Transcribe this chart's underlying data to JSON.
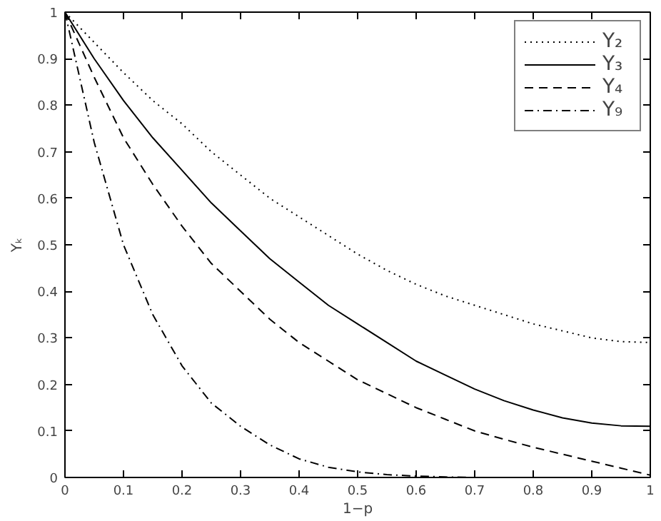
{
  "chart_data": {
    "type": "line",
    "xlabel": "1−p",
    "ylabel": "Υₖ",
    "xlim": [
      0,
      1
    ],
    "ylim": [
      0,
      1
    ],
    "xticks": [
      0,
      0.1,
      0.2,
      0.3,
      0.4,
      0.5,
      0.6,
      0.7,
      0.8,
      0.9,
      1
    ],
    "yticks": [
      0,
      0.1,
      0.2,
      0.3,
      0.4,
      0.5,
      0.6,
      0.7,
      0.8,
      0.9,
      1
    ],
    "grid": false,
    "legend": "top right",
    "marker": "none",
    "x": [
      0,
      0.05,
      0.1,
      0.15,
      0.2,
      0.25,
      0.3,
      0.35,
      0.4,
      0.45,
      0.5,
      0.55,
      0.6,
      0.65,
      0.7,
      0.75,
      0.8,
      0.85,
      0.9,
      0.95,
      1
    ],
    "series": [
      {
        "name": "Υ₂",
        "color": "#000000",
        "line_style": "dotted",
        "values": [
          1,
          0.935,
          0.87,
          0.81,
          0.76,
          0.7,
          0.65,
          0.6,
          0.56,
          0.52,
          0.48,
          0.445,
          0.415,
          0.39,
          0.37,
          0.35,
          0.33,
          0.315,
          0.3,
          0.292,
          0.29
        ]
      },
      {
        "name": "Υ₃",
        "color": "#000000",
        "line_style": "solid",
        "values": [
          1,
          0.9,
          0.81,
          0.73,
          0.66,
          0.59,
          0.53,
          0.47,
          0.42,
          0.37,
          0.33,
          0.29,
          0.25,
          0.22,
          0.19,
          0.165,
          0.145,
          0.128,
          0.117,
          0.111,
          0.11
        ]
      },
      {
        "name": "Υ₄",
        "color": "#000000",
        "line_style": "dashed",
        "values": [
          1,
          0.86,
          0.73,
          0.63,
          0.54,
          0.46,
          0.4,
          0.34,
          0.29,
          0.25,
          0.21,
          0.18,
          0.15,
          0.125,
          0.1,
          0.082,
          0.065,
          0.05,
          0.035,
          0.02,
          0.005
        ]
      },
      {
        "name": "Υ₉",
        "color": "#000000",
        "line_style": "dashdot",
        "values": [
          1,
          0.72,
          0.5,
          0.35,
          0.24,
          0.16,
          0.11,
          0.07,
          0.04,
          0.022,
          0.012,
          0.006,
          0.003,
          0.001,
          0,
          null,
          null,
          null,
          null,
          null,
          null
        ]
      }
    ]
  }
}
